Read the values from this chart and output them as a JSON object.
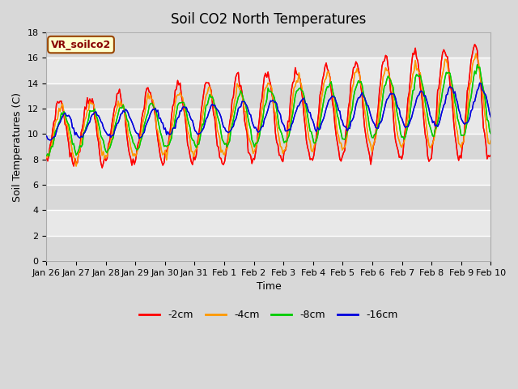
{
  "title": "Soil CO2 North Temperatures",
  "xlabel": "Time",
  "ylabel": "Soil Temperatures (C)",
  "ylim": [
    0,
    18
  ],
  "x_tick_labels": [
    "Jan 26",
    "Jan 27",
    "Jan 28",
    "Jan 29",
    "Jan 30",
    "Jan 31",
    "Feb 1",
    "Feb 2",
    "Feb 3",
    "Feb 4",
    "Feb 5",
    "Feb 6",
    "Feb 7",
    "Feb 8",
    "Feb 9",
    "Feb 10"
  ],
  "legend_entries": [
    "-2cm",
    "-4cm",
    "-8cm",
    "-16cm"
  ],
  "line_colors": [
    "#ff0000",
    "#ff9900",
    "#00cc00",
    "#0000dd"
  ],
  "annotation_text": "VR_soilco2",
  "annotation_bg": "#ffffcc",
  "annotation_border": "#994400",
  "plot_bg_color": "#e8e8e8",
  "grid_color": "#ffffff",
  "title_fontsize": 12,
  "axis_fontsize": 9,
  "tick_fontsize": 8
}
